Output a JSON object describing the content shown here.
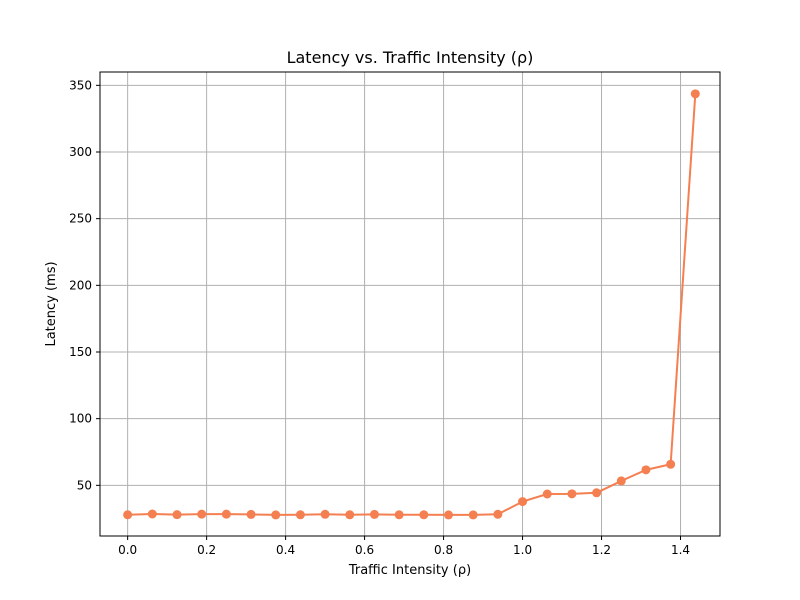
{
  "chart_data": {
    "type": "line",
    "title": "Latency vs. Traffic Intensity (ρ)",
    "xlabel": "Traffic Intensity (ρ)",
    "ylabel": "Latency (ms)",
    "xlim": [
      -0.07,
      1.5
    ],
    "ylim": [
      12,
      360
    ],
    "xticks": [
      0.0,
      0.2,
      0.4,
      0.6,
      0.8,
      1.0,
      1.2,
      1.4
    ],
    "xtick_labels": [
      "0.0",
      "0.2",
      "0.4",
      "0.6",
      "0.8",
      "1.0",
      "1.2",
      "1.4"
    ],
    "yticks": [
      50,
      100,
      150,
      200,
      250,
      300,
      350
    ],
    "ytick_labels": [
      "50",
      "100",
      "150",
      "200",
      "250",
      "300",
      "350"
    ],
    "grid": true,
    "series": [
      {
        "color": "#f47f51",
        "marker": "circle",
        "x": [
          0.0,
          0.0625,
          0.125,
          0.1875,
          0.25,
          0.3125,
          0.375,
          0.4375,
          0.5,
          0.5625,
          0.625,
          0.6875,
          0.75,
          0.8125,
          0.875,
          0.9375,
          1.0,
          1.0625,
          1.125,
          1.1875,
          1.25,
          1.3125,
          1.375,
          1.4375
        ],
        "y": [
          27.9,
          28.5,
          28.0,
          28.4,
          28.4,
          28.2,
          27.8,
          27.9,
          28.3,
          27.9,
          28.2,
          27.9,
          27.9,
          27.8,
          27.8,
          28.3,
          37.8,
          43.5,
          43.6,
          44.4,
          53.3,
          61.6,
          65.8,
          343.6
        ]
      }
    ]
  }
}
